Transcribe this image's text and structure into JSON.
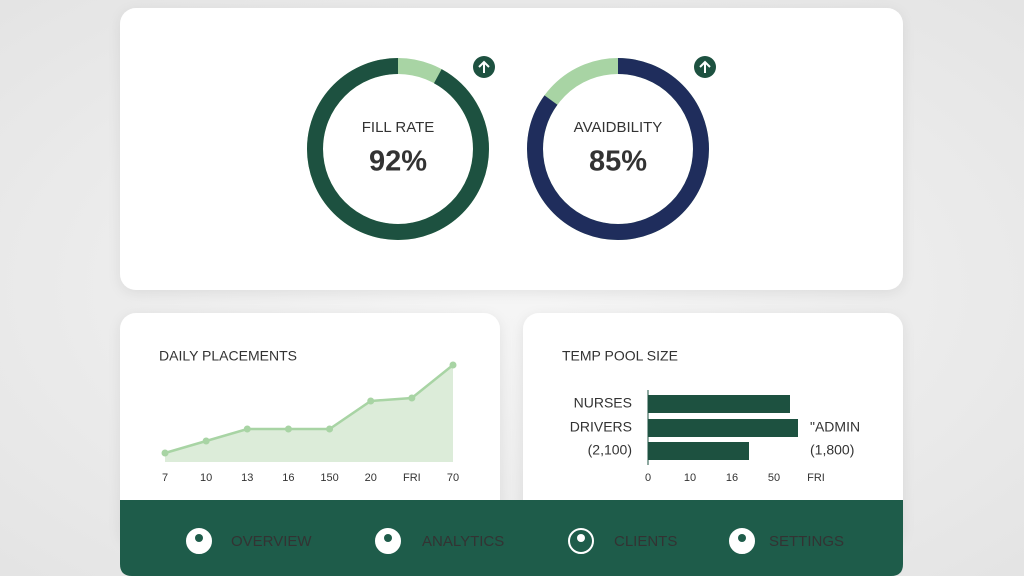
{
  "chart_data": [
    {
      "type": "donut",
      "title": "FILL RATE",
      "values": [
        92
      ],
      "value_labels": [
        "92%"
      ],
      "color": "#1d5140",
      "track_color": "#a8d4a4"
    },
    {
      "type": "donut",
      "title": "AVAIDBILITY",
      "values": [
        85
      ],
      "value_labels": [
        "85%"
      ],
      "color": "#1f2d5c",
      "track_color": "#a8d4a4"
    },
    {
      "type": "line",
      "title": "DAILY PLACEMENTS",
      "categories": [
        "7",
        "10",
        "13",
        "16",
        "150",
        "20",
        "FRI",
        "70"
      ],
      "values": [
        9,
        21,
        33,
        33,
        33,
        61,
        64,
        97
      ],
      "color": "#a8d4a4",
      "fill": "#dcecd9"
    },
    {
      "type": "bar",
      "title": "TEMP POOL SIZE",
      "categories": [
        "NURSES",
        "DRIVERS",
        "(2,100)"
      ],
      "values": [
        142,
        150,
        101
      ],
      "color": "#1d5140",
      "tick_labels": [
        "0",
        "10",
        "16",
        "50",
        "FRI"
      ],
      "annotations": [
        "\"ADMIN",
        "(1,800)"
      ]
    }
  ],
  "nav": {
    "items": [
      "OVERVIEW",
      "ANALYTICS",
      "CLIENTS",
      "SETTINGS"
    ]
  }
}
